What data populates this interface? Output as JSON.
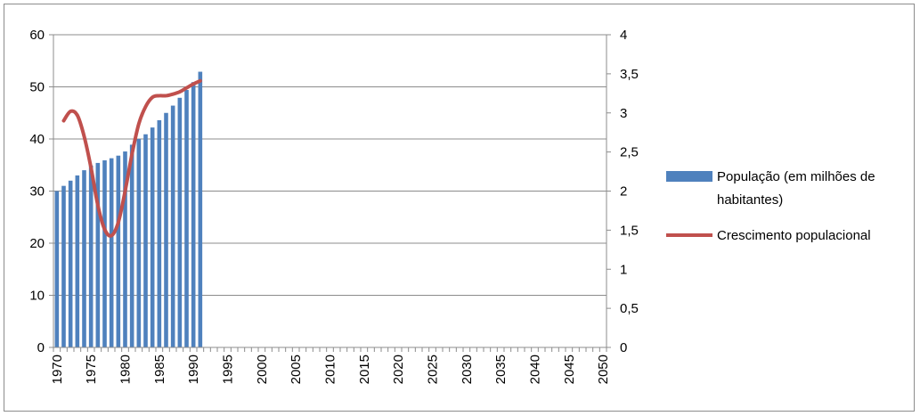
{
  "chart_data": {
    "type": "bar",
    "x_start": 1970,
    "x_end": 2050,
    "x_tick_labels": [
      "1970",
      "1975",
      "1980",
      "1985",
      "1990",
      "1995",
      "2000",
      "2005",
      "2010",
      "2015",
      "2020",
      "2025",
      "2030",
      "2035",
      "2040",
      "2045",
      "2050"
    ],
    "y_left": {
      "min": 0,
      "max": 60,
      "ticks": [
        "0",
        "10",
        "20",
        "30",
        "40",
        "50",
        "60"
      ]
    },
    "y_right": {
      "min": 0,
      "max": 4,
      "ticks": [
        "0",
        "0,5",
        "1",
        "1,5",
        "2",
        "2,5",
        "3",
        "3,5",
        "4"
      ]
    },
    "grid": true,
    "legend_position": "right",
    "series": [
      {
        "name": "População (em milhões de habitantes)",
        "kind": "bar",
        "axis": "left",
        "color": "#4F81BD",
        "x": [
          1970,
          1971,
          1972,
          1973,
          1974,
          1975,
          1976,
          1977,
          1978,
          1979,
          1980,
          1981,
          1982,
          1983,
          1984,
          1985,
          1986,
          1987,
          1988,
          1989,
          1990,
          1991
        ],
        "values": [
          30.0,
          31.0,
          32.0,
          33.0,
          34.0,
          34.9,
          35.4,
          35.9,
          36.3,
          36.8,
          37.6,
          38.9,
          40.0,
          40.9,
          42.2,
          43.6,
          45.0,
          46.4,
          47.9,
          49.4,
          50.9,
          52.9
        ]
      },
      {
        "name": "Crescimento populacional",
        "kind": "line",
        "axis": "right",
        "color": "#C0504D",
        "x": [
          1971,
          1972,
          1973,
          1974,
          1975,
          1976,
          1977,
          1978,
          1979,
          1980,
          1981,
          1982,
          1983,
          1984,
          1985,
          1986,
          1987,
          1988,
          1989,
          1990,
          1991
        ],
        "values": [
          2.9,
          3.02,
          2.97,
          2.7,
          2.3,
          1.82,
          1.51,
          1.43,
          1.6,
          2.0,
          2.47,
          2.86,
          3.08,
          3.2,
          3.22,
          3.22,
          3.24,
          3.27,
          3.32,
          3.37,
          3.41
        ]
      }
    ]
  },
  "legend": {
    "bar_label_line1": "População (em milhões de",
    "bar_label_line2": "habitantes)",
    "line_label": "Crescimento populacional"
  }
}
